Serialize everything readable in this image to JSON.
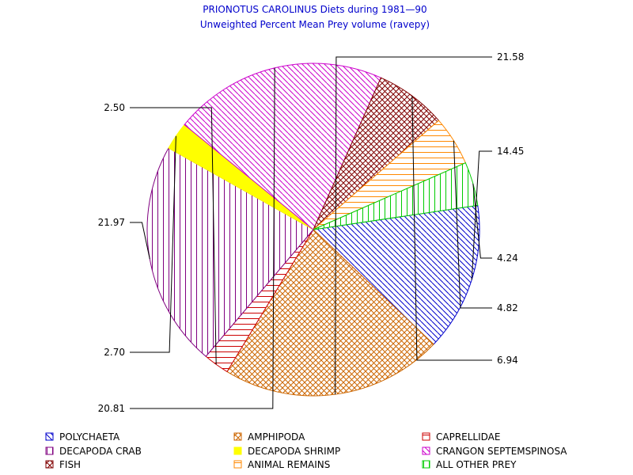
{
  "chart_data": {
    "type": "pie",
    "title": "PRIONOTUS CAROLINUS Diets during 1981—90",
    "subtitle": "Unweighted Percent Mean Prey volume (ravepy)",
    "slices": [
      {
        "label": "POLYCHAETA",
        "value": 14.45,
        "value_label": "14.45",
        "color": "#0000cc",
        "pattern": "diag-down"
      },
      {
        "label": "AMPHIPODA",
        "value": 21.58,
        "value_label": "21.58",
        "color": "#cc6600",
        "pattern": "crosshatch"
      },
      {
        "label": "CAPRELLIDAE",
        "value": 2.5,
        "value_label": "2.50",
        "color": "#cc0000",
        "pattern": "horizontal"
      },
      {
        "label": "DECAPODA CRAB",
        "value": 21.97,
        "value_label": "21.97",
        "color": "#800080",
        "pattern": "vertical"
      },
      {
        "label": "DECAPODA SHRIMP",
        "value": 2.7,
        "value_label": "2.70",
        "color": "#ffff00",
        "pattern": "solid"
      },
      {
        "label": "CRANGON SEPTEMSPINOSA",
        "value": 20.81,
        "value_label": "20.81",
        "color": "#cc00cc",
        "pattern": "diag-down"
      },
      {
        "label": "FISH",
        "value": 6.94,
        "value_label": "6.94",
        "color": "#800000",
        "pattern": "crosshatch"
      },
      {
        "label": "ANIMAL REMAINS",
        "value": 4.82,
        "value_label": "4.82",
        "color": "#ff8800",
        "pattern": "horizontal"
      },
      {
        "label": "ALL OTHER PREY",
        "value": 4.24,
        "value_label": "4.24",
        "color": "#00cc00",
        "pattern": "vertical"
      }
    ],
    "legend_position": "bottom"
  }
}
